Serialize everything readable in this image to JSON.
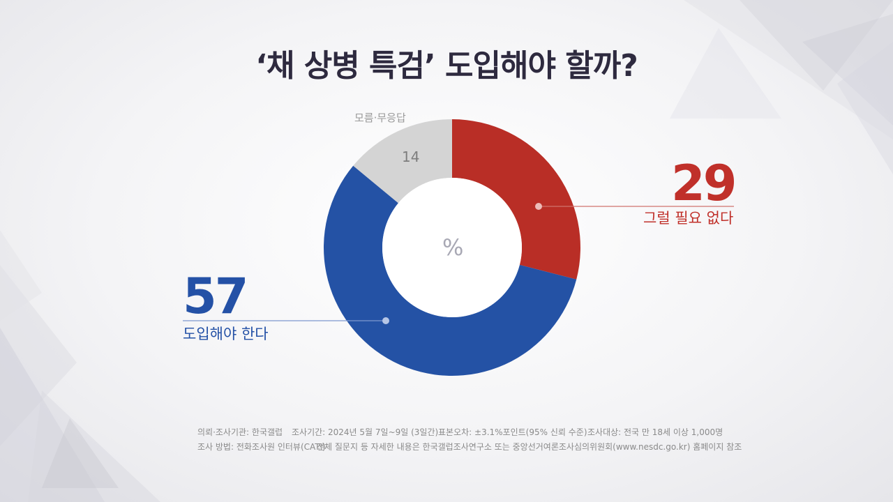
{
  "title": "‘채 상병 특검’ 도입해야 할까?",
  "chart_data": {
    "type": "pie",
    "title": "‘채 상병 특검’ 도입해야 할까?",
    "unit": "%",
    "slices": [
      {
        "label": "그럴 필요 없다",
        "value": 29,
        "color": "#b92e26"
      },
      {
        "label": "도입해야 한다",
        "value": 57,
        "color": "#2452a5"
      },
      {
        "label": "모름·무응답",
        "value": 14,
        "color": "#d4d4d4"
      }
    ]
  },
  "footer": {
    "client": "의뢰·조사기관: 한국갤럽",
    "period": "조사기간: 2024년 5월 7일~9일 (3일간)",
    "margin": "표본오차: ±3.1%포인트(95% 신뢰 수준)",
    "target": "조사대상: 전국 만 18세 이상 1,000명",
    "method": "조사 방법: 전화조사원 인터뷰(CATI)",
    "note": "전체 질문지 등 자세한 내용은 한국갤럽조사연구소 또는 중앙선거여론조사심의위원회(www.nesdc.go.kr) 홈페이지 참조"
  }
}
